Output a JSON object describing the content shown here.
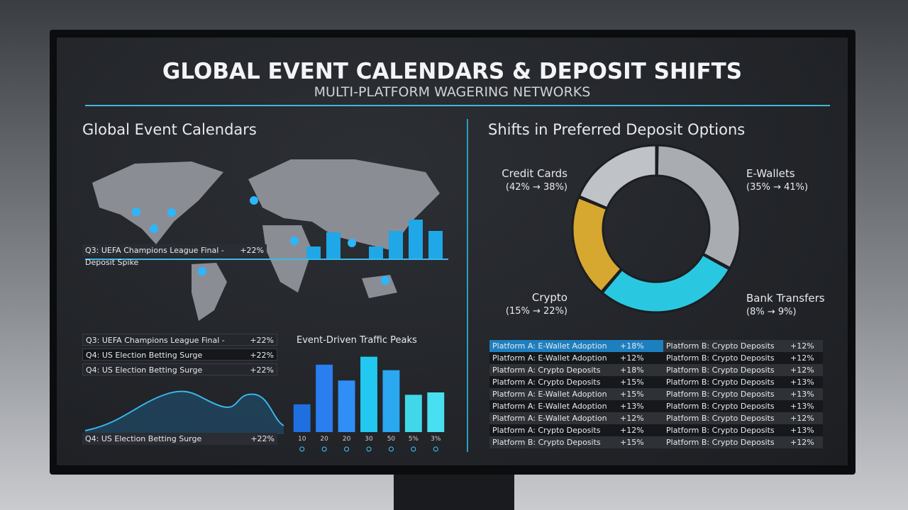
{
  "header": {
    "title": "GLOBAL EVENT CALENDARS & DEPOSIT SHIFTS",
    "subtitle": "MULTI-PLATFORM WAGERING NETWORKS"
  },
  "left": {
    "heading": "Global Event Calendars",
    "map_banner": {
      "text": "Q3: UEFA Champions League Final - Deposit Spike",
      "value": "+22%"
    },
    "events": [
      [
        "Q3: UEFA Champions League Final - Deposit Spike",
        "+22%"
      ],
      [
        "Q4: US Election Betting Surge",
        "+22%"
      ],
      [
        "Q4: US Election Betting Surge",
        "+22%"
      ]
    ],
    "trend_event": [
      "Q4: US Election Betting Surge",
      "+22%"
    ]
  },
  "chart_data": {
    "type": "bar",
    "title": "Event-Driven Traffic Peaks",
    "categories": [
      "10",
      "20",
      "20",
      "30",
      "50",
      "5%",
      "3%"
    ],
    "values": [
      35,
      85,
      65,
      95,
      78,
      47,
      50
    ],
    "colors": [
      "#1f6fe0",
      "#2a7ef0",
      "#2f8ff5",
      "#22c8f0",
      "#2aa8f0",
      "#40d8e8",
      "#48e0f0"
    ],
    "ylim": [
      0,
      100
    ]
  },
  "right": {
    "heading": "Shifts in Preferred Deposit Options",
    "donut_labels": [
      [
        "Credit Cards",
        "(42% → 38%)"
      ],
      [
        "E-Wallets",
        "(35% → 41%)"
      ],
      [
        "Crypto",
        "(15% → 22%)"
      ],
      [
        "Bank Transfers",
        "(8% → 9%)"
      ]
    ],
    "table": {
      "rows": [
        [
          "Platform A: E-Wallet Adoption",
          "+18%",
          "Platform B: Crypto Deposits",
          "+12%"
        ],
        [
          "Platform A: E-Wallet Adoption",
          "+12%",
          "Platform B: Crypto Deposits",
          "+12%"
        ],
        [
          "Platform A: Crypto Deposits",
          "+18%",
          "Platform B: Crypto Deposits",
          "+12%"
        ],
        [
          "Platform A: Crypto Deposits",
          "+15%",
          "Platform B: Crypto Deposits",
          "+13%"
        ],
        [
          "Platform A: E-Wallet Adoption",
          "+15%",
          "Platform B: Crypto Deposits",
          "+13%"
        ],
        [
          "Platform A: E-Wallet Adoption",
          "+13%",
          "Platform B: Crypto Deposits",
          "+13%"
        ],
        [
          "Platform A: E-Wallet Adoption",
          "+12%",
          "Platform B: Crypto Deposits",
          "+12%"
        ],
        [
          "Platform A: Crypto Deposits",
          "+12%",
          "Platform B: Crypto Deposits",
          "+13%"
        ],
        [
          "Platform B: Crypto Deposits",
          "+15%",
          "Platform B: Crypto Deposits",
          "+12%"
        ]
      ]
    }
  }
}
